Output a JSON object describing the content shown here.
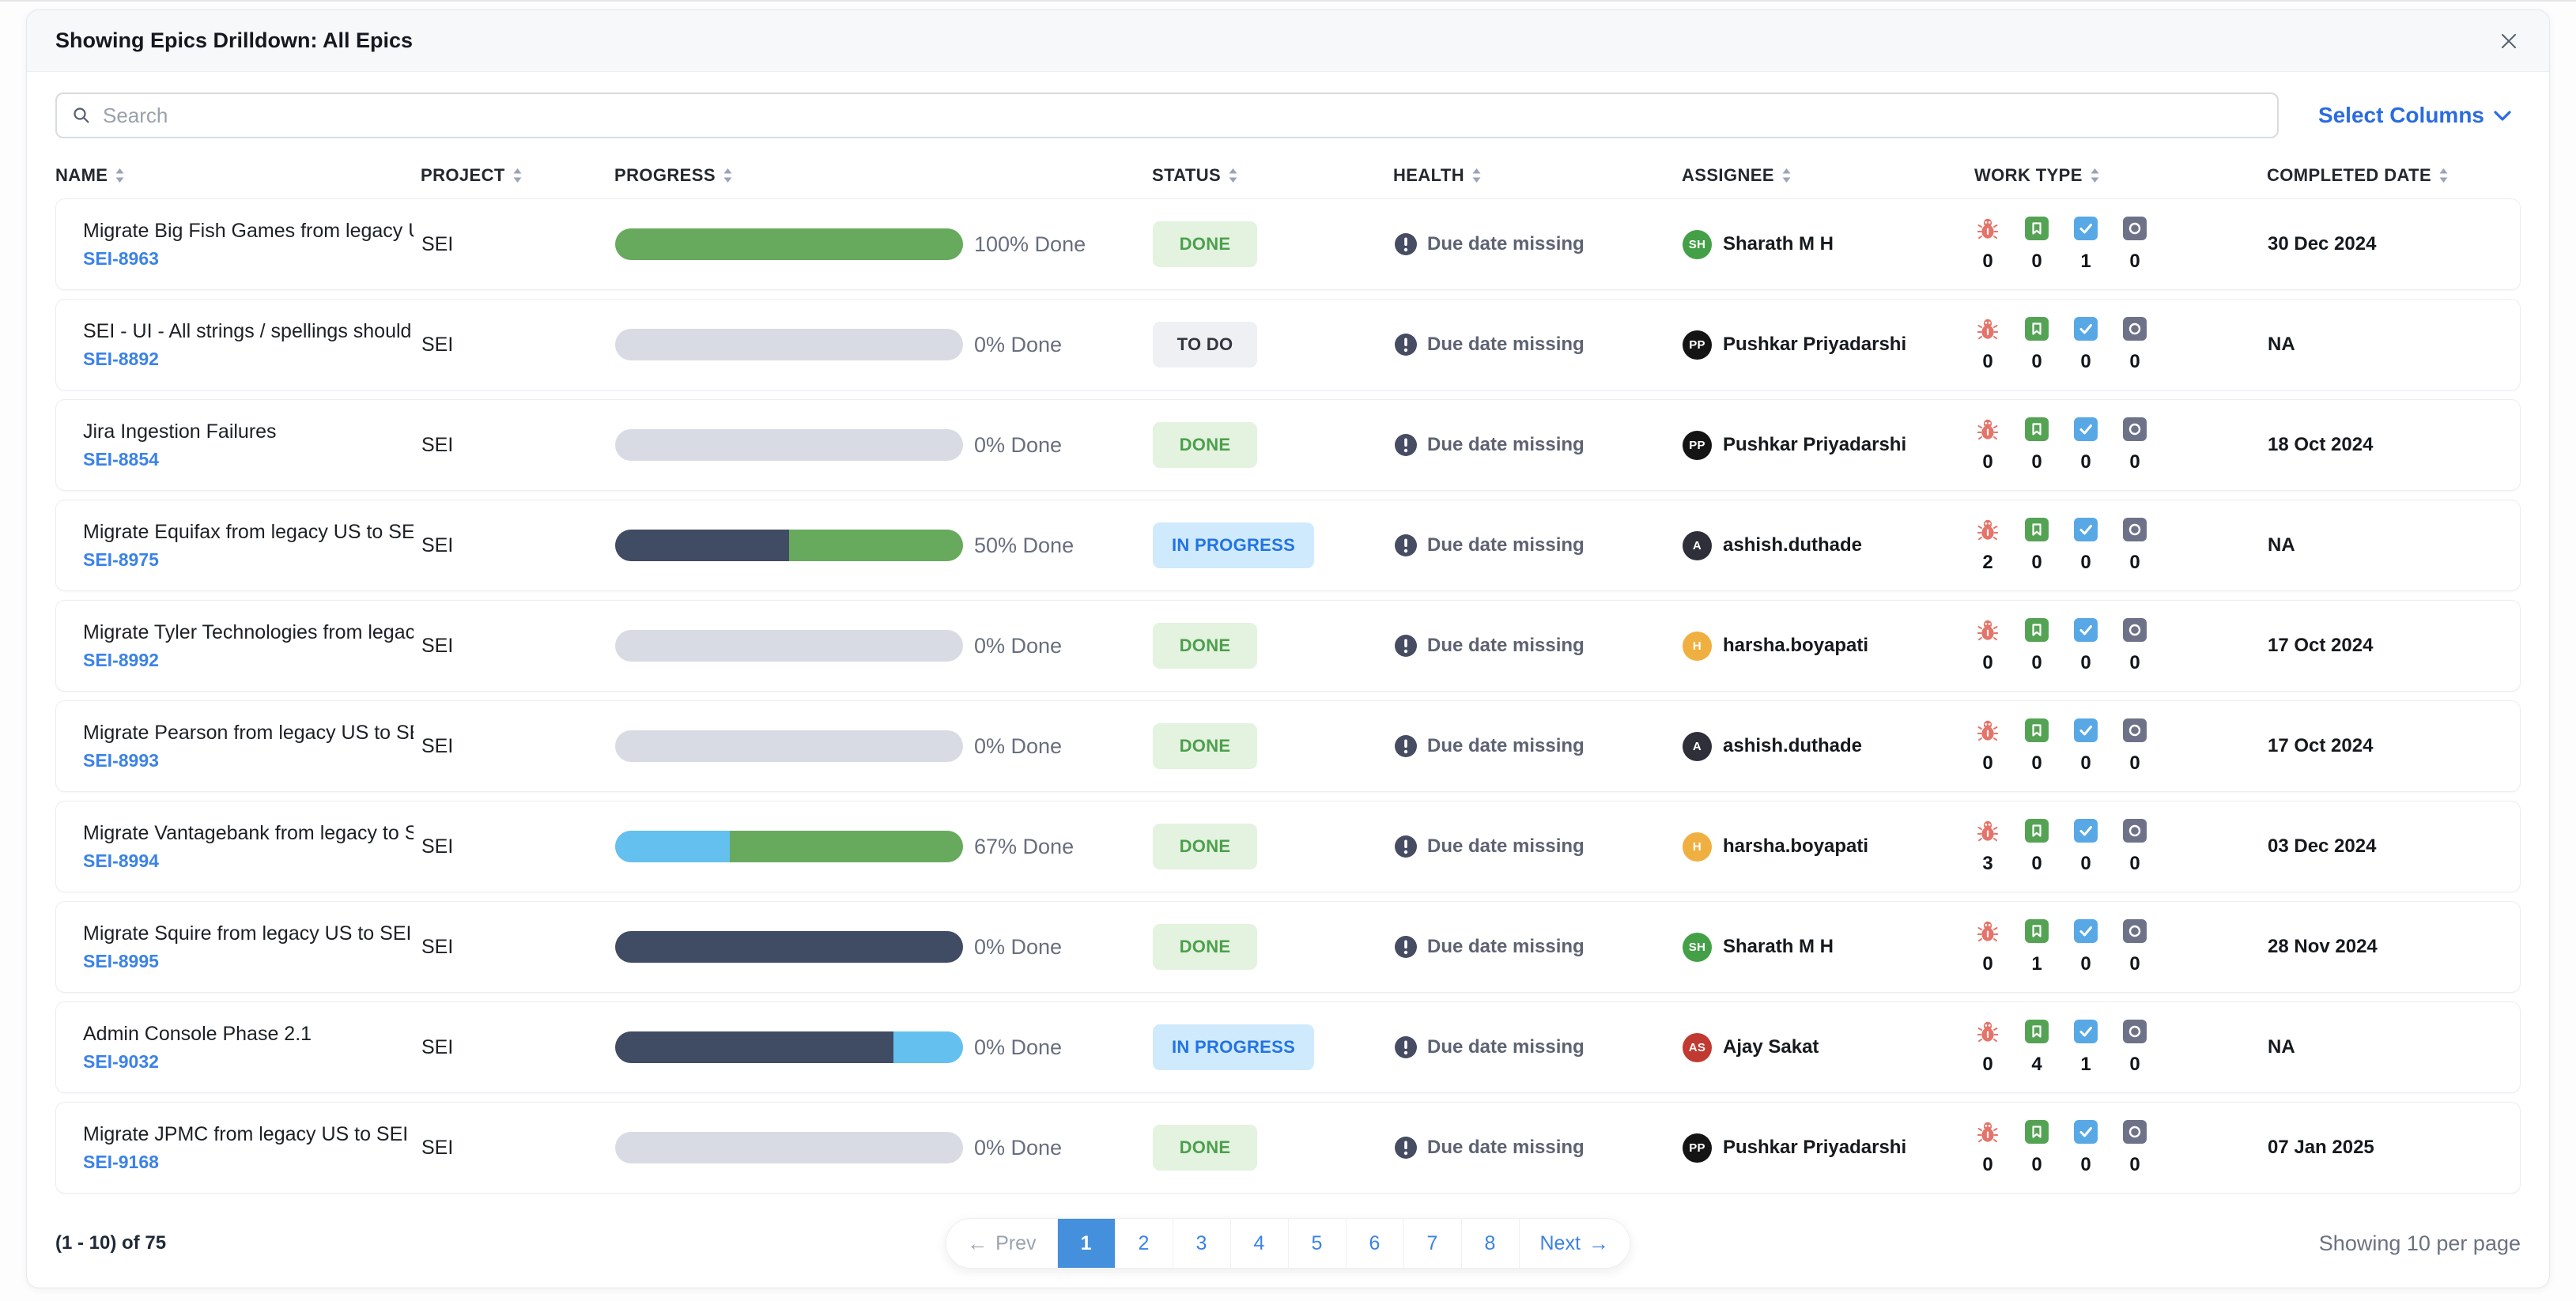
{
  "header": {
    "title": "Showing Epics Drilldown: All Epics"
  },
  "toolbar": {
    "search_placeholder": "Search",
    "select_columns_label": "Select Columns"
  },
  "colors": {
    "accent_blue": "#2a6ce0",
    "link_blue": "#3b82e8",
    "progress_green": "#67aa5d",
    "progress_navy": "#404b64",
    "progress_blue": "#64c0ee",
    "progress_track": "#d9dbe4",
    "done_bg": "#e4f2e0",
    "done_text": "#4ca04c",
    "todo_bg": "#eff0f4",
    "todo_text": "#32363d",
    "inprogress_bg": "#cfeafc",
    "inprogress_text": "#2273e3"
  },
  "table": {
    "columns": [
      "NAME",
      "PROJECT",
      "PROGRESS",
      "STATUS",
      "HEALTH",
      "ASSIGNEE",
      "WORK TYPE",
      "COMPLETED DATE"
    ],
    "work_type_icons": [
      "bug-icon",
      "story-icon",
      "task-icon",
      "epic-icon"
    ],
    "rows": [
      {
        "name": "Migrate Big Fish Games from legacy US to SEI ...",
        "key": "SEI-8963",
        "project": "SEI",
        "progress": {
          "label": "100% Done",
          "segments": [
            {
              "color": "progress_green",
              "pct": 100
            }
          ]
        },
        "status": {
          "label": "DONE",
          "type": "done"
        },
        "health": "Due date missing",
        "assignee": {
          "initials": "SH",
          "name": "Sharath M H",
          "color": "#43a047"
        },
        "work_type_counts": [
          0,
          0,
          1,
          0
        ],
        "completed": "30 Dec 2024"
      },
      {
        "name": "SEI - UI - All strings / spellings should be in A...",
        "key": "SEI-8892",
        "project": "SEI",
        "progress": {
          "label": "0% Done",
          "segments": []
        },
        "status": {
          "label": "TO DO",
          "type": "todo"
        },
        "health": "Due date missing",
        "assignee": {
          "initials": "PP",
          "name": "Pushkar Priyadarshi",
          "color": "#141414"
        },
        "work_type_counts": [
          0,
          0,
          0,
          0
        ],
        "completed": "NA"
      },
      {
        "name": "Jira Ingestion Failures",
        "key": "SEI-8854",
        "project": "SEI",
        "progress": {
          "label": "0% Done",
          "segments": []
        },
        "status": {
          "label": "DONE",
          "type": "done"
        },
        "health": "Due date missing",
        "assignee": {
          "initials": "PP",
          "name": "Pushkar Priyadarshi",
          "color": "#141414"
        },
        "work_type_counts": [
          0,
          0,
          0,
          0
        ],
        "completed": "18 Oct 2024"
      },
      {
        "name": "Migrate Equifax from legacy US to SEI on Harn...",
        "key": "SEI-8975",
        "project": "SEI",
        "progress": {
          "label": "50% Done",
          "segments": [
            {
              "color": "progress_navy",
              "pct": 50
            },
            {
              "color": "progress_green",
              "pct": 50
            }
          ]
        },
        "status": {
          "label": "IN PROGRESS",
          "type": "inprogress"
        },
        "health": "Due date missing",
        "assignee": {
          "initials": "A",
          "name": "ashish.duthade",
          "color": "#2f2f3a"
        },
        "work_type_counts": [
          2,
          0,
          0,
          0
        ],
        "completed": "NA"
      },
      {
        "name": "Migrate Tyler Technologies from legacy US to ...",
        "key": "SEI-8992",
        "project": "SEI",
        "progress": {
          "label": "0% Done",
          "segments": []
        },
        "status": {
          "label": "DONE",
          "type": "done"
        },
        "health": "Due date missing",
        "assignee": {
          "initials": "H",
          "name": "harsha.boyapati",
          "color": "#efb041"
        },
        "work_type_counts": [
          0,
          0,
          0,
          0
        ],
        "completed": "17 Oct 2024"
      },
      {
        "name": "Migrate Pearson from legacy US to SEI on Har...",
        "key": "SEI-8993",
        "project": "SEI",
        "progress": {
          "label": "0% Done",
          "segments": []
        },
        "status": {
          "label": "DONE",
          "type": "done"
        },
        "health": "Due date missing",
        "assignee": {
          "initials": "A",
          "name": "ashish.duthade",
          "color": "#2f2f3a"
        },
        "work_type_counts": [
          0,
          0,
          0,
          0
        ],
        "completed": "17 Oct 2024"
      },
      {
        "name": "Migrate Vantagebank from legacy to SEI on Ha...",
        "key": "SEI-8994",
        "project": "SEI",
        "progress": {
          "label": "67% Done",
          "segments": [
            {
              "color": "progress_blue",
              "pct": 33
            },
            {
              "color": "progress_green",
              "pct": 67
            }
          ]
        },
        "status": {
          "label": "DONE",
          "type": "done"
        },
        "health": "Due date missing",
        "assignee": {
          "initials": "H",
          "name": "harsha.boyapati",
          "color": "#efb041"
        },
        "work_type_counts": [
          3,
          0,
          0,
          0
        ],
        "completed": "03 Dec 2024"
      },
      {
        "name": "Migrate Squire from legacy US to SEI on Harne...",
        "key": "SEI-8995",
        "project": "SEI",
        "progress": {
          "label": "0% Done",
          "segments": [
            {
              "color": "progress_navy",
              "pct": 100
            }
          ]
        },
        "status": {
          "label": "DONE",
          "type": "done"
        },
        "health": "Due date missing",
        "assignee": {
          "initials": "SH",
          "name": "Sharath M H",
          "color": "#43a047"
        },
        "work_type_counts": [
          0,
          1,
          0,
          0
        ],
        "completed": "28 Nov 2024"
      },
      {
        "name": "Admin Console Phase 2.1",
        "key": "SEI-9032",
        "project": "SEI",
        "progress": {
          "label": "0% Done",
          "segments": [
            {
              "color": "progress_navy",
              "pct": 80
            },
            {
              "color": "progress_blue",
              "pct": 20
            }
          ]
        },
        "status": {
          "label": "IN PROGRESS",
          "type": "inprogress"
        },
        "health": "Due date missing",
        "assignee": {
          "initials": "AS",
          "name": "Ajay Sakat",
          "color": "#c13a31"
        },
        "work_type_counts": [
          0,
          4,
          1,
          0
        ],
        "completed": "NA"
      },
      {
        "name": "Migrate JPMC from legacy US to SEI on Harne...",
        "key": "SEI-9168",
        "project": "SEI",
        "progress": {
          "label": "0% Done",
          "segments": []
        },
        "status": {
          "label": "DONE",
          "type": "done"
        },
        "health": "Due date missing",
        "assignee": {
          "initials": "PP",
          "name": "Pushkar Priyadarshi",
          "color": "#141414"
        },
        "work_type_counts": [
          0,
          0,
          0,
          0
        ],
        "completed": "07 Jan 2025"
      }
    ]
  },
  "footer": {
    "range_label": "(1 - 10) of 75",
    "prev_label": "Prev",
    "next_label": "Next",
    "prev_arrow": "←",
    "next_arrow": "→",
    "pages": [
      "1",
      "2",
      "3",
      "4",
      "5",
      "6",
      "7",
      "8"
    ],
    "active_page": "1",
    "per_page_label": "Showing 10 per page"
  }
}
